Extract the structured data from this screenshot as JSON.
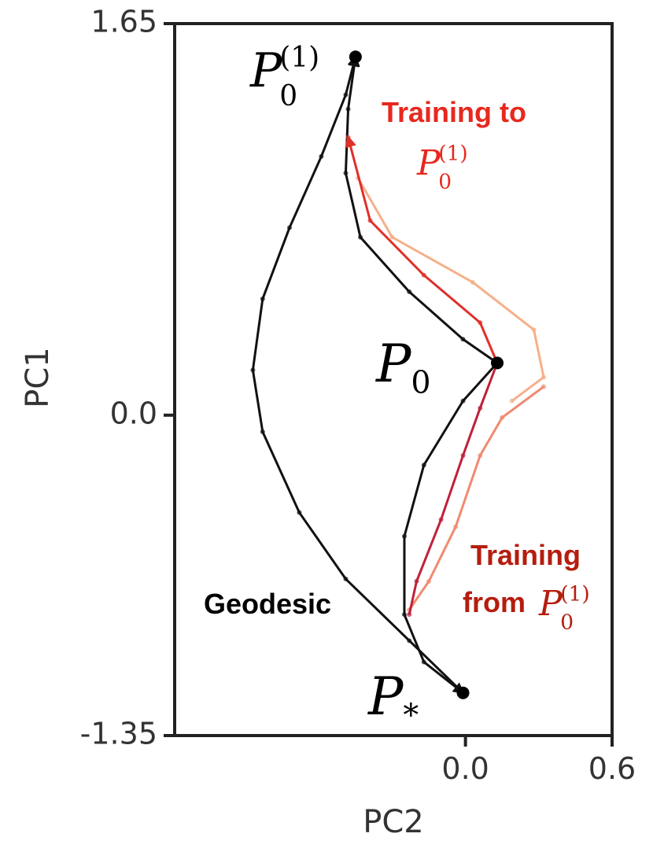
{
  "chart_data": {
    "type": "line",
    "x_label": "PC2",
    "y_label": "PC1",
    "xlim": [
      -1.19,
      0.6
    ],
    "ylim": [
      -1.35,
      1.65
    ],
    "xticks": [
      {
        "value": 0,
        "label": "0.0"
      },
      {
        "value": 0.6,
        "label": "0.6"
      }
    ],
    "yticks": [
      -1.35,
      {
        "value": 0,
        "label": "0.0"
      },
      1.65
    ],
    "series": [
      {
        "color": "#111111",
        "arrow": true,
        "x": [
          -0.01,
          -0.23,
          -0.49,
          -0.68,
          -0.83,
          -0.87,
          -0.83,
          -0.72,
          -0.59,
          -0.49,
          -0.45
        ],
        "values": [
          -1.17,
          -0.95,
          -0.69,
          -0.41,
          -0.07,
          0.19,
          0.49,
          0.79,
          1.09,
          1.35,
          1.51
        ]
      },
      {
        "color": "#111111",
        "arrow": true,
        "x": [
          0.13,
          -0.01,
          -0.23,
          -0.43,
          -0.49,
          -0.48,
          -0.45
        ],
        "values": [
          0.22,
          0.32,
          0.52,
          0.75,
          1.02,
          1.29,
          1.51
        ]
      },
      {
        "color": "#111111",
        "arrow": true,
        "x": [
          0.13,
          -0.01,
          -0.17,
          -0.25,
          -0.25,
          -0.17,
          -0.01
        ],
        "values": [
          0.22,
          0.06,
          -0.21,
          -0.51,
          -0.84,
          -1.04,
          -1.17
        ]
      },
      {
        "color": "#f5b08a",
        "arrow": false,
        "x": [
          -0.44,
          -0.3,
          0.03,
          0.28,
          0.32,
          0.19
        ],
        "values": [
          1.0,
          0.75,
          0.56,
          0.36,
          0.16,
          0.06
        ]
      },
      {
        "color": "#e0302a",
        "arrow": true,
        "x": [
          0.13,
          0.06,
          -0.17,
          -0.39,
          -0.48
        ],
        "values": [
          0.22,
          0.39,
          0.59,
          0.82,
          1.17
        ]
      },
      {
        "color": "#f08a70",
        "arrow": false,
        "x": [
          0.32,
          0.15,
          0.06,
          -0.04,
          -0.15,
          -0.23
        ],
        "values": [
          0.12,
          -0.01,
          -0.17,
          -0.47,
          -0.7,
          -0.82
        ]
      },
      {
        "color": "#c0203a",
        "arrow": false,
        "x": [
          0.13,
          0.06,
          -0.01,
          -0.1,
          -0.2,
          -0.23
        ],
        "values": [
          0.22,
          0.03,
          -0.17,
          -0.44,
          -0.7,
          -0.84
        ]
      }
    ],
    "points": {
      "color": "#000000",
      "x": [
        -0.45,
        0.13,
        -0.01
      ],
      "values": [
        1.51,
        0.22,
        -1.17
      ]
    },
    "point_labels": [
      {
        "base": "P",
        "sub": "0",
        "sup": "(1)"
      },
      {
        "base": "P",
        "sub": "0"
      },
      {
        "base": "P",
        "sub": "*"
      }
    ],
    "annotations": [
      {
        "text": "Training to",
        "math": {
          "base": "P",
          "sub": "0",
          "sup": "(1)"
        },
        "color": "#e8281e"
      },
      {
        "text": "Training",
        "color": "#b51d0e"
      },
      {
        "text": "from",
        "math": {
          "base": "P",
          "sub": "0",
          "sup": "(1)"
        },
        "color": "#b51d0e"
      },
      {
        "text": "Geodesic",
        "color": "#000000"
      }
    ]
  }
}
